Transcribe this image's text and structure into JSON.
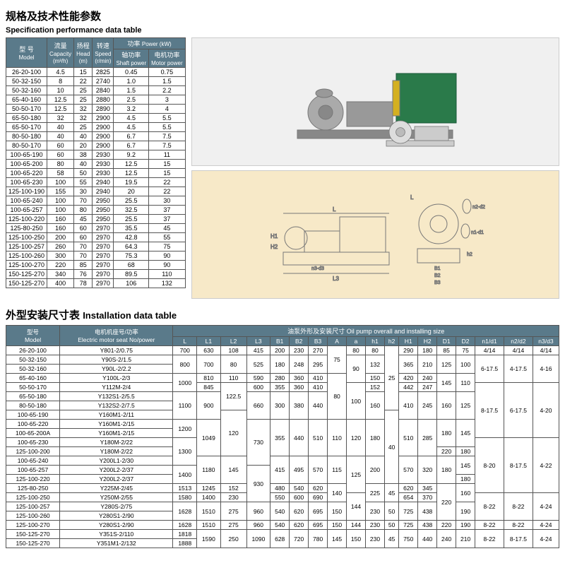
{
  "spec": {
    "title_cn": "规格及技术性能参数",
    "title_en": "Specification performance data table",
    "headers": {
      "model_cn": "型 号",
      "model_en": "Model",
      "cap_cn": "流量",
      "cap_en": "Capacity",
      "cap_u": "(m³/h)",
      "head_cn": "扬程",
      "head_en": "Head",
      "head_u": "(m)",
      "speed_cn": "转速",
      "speed_en": "Speed",
      "speed_u": "(r/min)",
      "power_cn": "功率",
      "power_en": "Power (kW)",
      "shaft_cn": "轴功率",
      "shaft_en": "Shaft power",
      "motor_cn": "电机功率",
      "motor_en": "Motor power"
    },
    "rows": [
      [
        "26-20-100",
        "4.5",
        "15",
        "2825",
        "0.45",
        "0.75"
      ],
      [
        "50-32-150",
        "8",
        "22",
        "2740",
        "1.0",
        "1.5"
      ],
      [
        "50-32-160",
        "10",
        "25",
        "2840",
        "1.5",
        "2.2"
      ],
      [
        "65-40-160",
        "12.5",
        "25",
        "2880",
        "2.5",
        "3"
      ],
      [
        "50-50-170",
        "12.5",
        "32",
        "2890",
        "3.2",
        "4"
      ],
      [
        "65-50-180",
        "32",
        "32",
        "2900",
        "4.5",
        "5.5"
      ],
      [
        "65-50-170",
        "40",
        "25",
        "2900",
        "4.5",
        "5.5"
      ],
      [
        "80-50-180",
        "40",
        "40",
        "2900",
        "6.7",
        "7.5"
      ],
      [
        "80-50-170",
        "60",
        "20",
        "2900",
        "6.7",
        "7.5"
      ],
      [
        "100-65-190",
        "60",
        "38",
        "2930",
        "9.2",
        "11"
      ],
      [
        "100-65-200",
        "80",
        "40",
        "2930",
        "12.5",
        "15"
      ],
      [
        "100-65-220",
        "58",
        "50",
        "2930",
        "12.5",
        "15"
      ],
      [
        "100-65-230",
        "100",
        "55",
        "2940",
        "19.5",
        "22"
      ],
      [
        "125-100-190",
        "155",
        "30",
        "2940",
        "20",
        "22"
      ],
      [
        "100-65-240",
        "100",
        "70",
        "2950",
        "25.5",
        "30"
      ],
      [
        "100-65-257",
        "100",
        "80",
        "2950",
        "32.5",
        "37"
      ],
      [
        "125-100-220",
        "160",
        "45",
        "2950",
        "25.5",
        "37"
      ],
      [
        "125-80-250",
        "160",
        "60",
        "2970",
        "35.5",
        "45"
      ],
      [
        "125-100-250",
        "200",
        "60",
        "2970",
        "42.8",
        "55"
      ],
      [
        "125-100-257",
        "260",
        "70",
        "2970",
        "64.3",
        "75"
      ],
      [
        "125-100-260",
        "300",
        "70",
        "2970",
        "75.3",
        "90"
      ],
      [
        "125-100-270",
        "220",
        "85",
        "2970",
        "68",
        "90"
      ],
      [
        "150-125-270",
        "340",
        "76",
        "2970",
        "89.5",
        "110"
      ],
      [
        "150-125-270",
        "400",
        "78",
        "2970",
        "106",
        "132"
      ]
    ]
  },
  "inst": {
    "title_cn": "外型安装尺寸表",
    "title_en": "Installation data table",
    "h": {
      "model_cn": "型号",
      "model_en": "Model",
      "motor_cn": "电机机座号/功率",
      "motor_en": "Electric motor seat No/power",
      "grp_cn": "油泵外形及安装尺寸",
      "grp_en": "Oil pump overall and installing size"
    },
    "cols": [
      "L",
      "L1",
      "L2",
      "L3",
      "B1",
      "B2",
      "B3",
      "A",
      "a",
      "h1",
      "h2",
      "H1",
      "H2",
      "D1",
      "D2",
      "n1/d1",
      "n2/d2",
      "n3/d3"
    ],
    "rows": [
      [
        "26-20-100",
        "Y801-2/0.75",
        "700",
        "630",
        "108",
        "415",
        "200",
        "230",
        "270",
        "75",
        "80",
        "80",
        "25",
        "290",
        "180",
        "85",
        "75",
        "4/14",
        "4/14",
        "4/14"
      ],
      [
        "50-32-150",
        "Y90S-2/1.5",
        "800",
        "700",
        "80",
        "525",
        "180",
        "248",
        "295",
        "",
        "90",
        "132",
        "",
        "365",
        "210",
        "125",
        "100",
        "6-17.5",
        "4-17.5",
        "4-16"
      ],
      [
        "50-32-160",
        "Y90L-2/2.2",
        "",
        "",
        "",
        "",
        "",
        "",
        "",
        "",
        "",
        "",
        "",
        "",
        "",
        "",
        "",
        "",
        "",
        ""
      ],
      [
        "65-40-160",
        "Y100L-2/3",
        "1000",
        "810",
        "110",
        "590",
        "280",
        "360",
        "410",
        "80",
        "",
        "150",
        "",
        "420",
        "240",
        "145",
        "110",
        "",
        "",
        ""
      ],
      [
        "50-50-170",
        "Y112M-2/4",
        "",
        "845",
        "122.5",
        "600",
        "355",
        "360",
        "410",
        "",
        "100",
        "152",
        "",
        "442",
        "247",
        "",
        "",
        "8-17.5",
        "6-17.5",
        "4-20"
      ],
      [
        "65-50-180",
        "Y132S1-2/5.5",
        "1100",
        "900",
        "",
        "660",
        "300",
        "380",
        "440",
        "",
        "",
        "160",
        "",
        "410",
        "245",
        "160",
        "125",
        "",
        "",
        ""
      ],
      [
        "80-50-180",
        "Y132S2-2/7.5",
        "",
        "",
        "",
        "",
        "",
        "",
        "",
        "",
        "",
        "",
        "",
        "",
        "",
        "",
        "",
        "",
        "",
        ""
      ],
      [
        "100-65-190",
        "Y160M1-2/11",
        "",
        "",
        "120",
        "",
        "",
        "",
        "",
        "",
        "",
        "",
        "40",
        "",
        "",
        "",
        "",
        "",
        "",
        ""
      ],
      [
        "100-65-220",
        "Y160M1-2/15",
        "1200",
        "1049",
        "",
        "730",
        "355",
        "440",
        "510",
        "110",
        "120",
        "180",
        "",
        "510",
        "285",
        "180",
        "145",
        "",
        "",
        ""
      ],
      [
        "100-65-200A",
        "Y160M1-2/15",
        "",
        "",
        "",
        "",
        "",
        "",
        "",
        "",
        "",
        "",
        "",
        "",
        "",
        "",
        "",
        "",
        "",
        ""
      ],
      [
        "100-65-230",
        "Y180M-2/22",
        "1300",
        "",
        "",
        "",
        "",
        "",
        "",
        "",
        "",
        "",
        "",
        "",
        "",
        "",
        "",
        "8-20",
        "8-17.5",
        "4-22"
      ],
      [
        "125-100-200",
        "Y180M-2/22",
        "",
        "",
        "",
        "",
        "",
        "",
        "",
        "",
        "",
        "",
        "",
        "",
        "",
        "220",
        "180",
        "",
        "",
        ""
      ],
      [
        "100-65-240",
        "Y200L1-2/30",
        "",
        "1180",
        "145",
        "",
        "415",
        "495",
        "570",
        "115",
        "125",
        "200",
        "",
        "570",
        "320",
        "180",
        "145",
        "",
        "",
        ""
      ],
      [
        "100-65-257",
        "Y200L2-2/37",
        "1400",
        "",
        "",
        "930",
        "",
        "",
        "",
        "",
        "",
        "",
        "",
        "",
        "",
        "",
        "",
        "",
        "",
        ""
      ],
      [
        "125-100-220",
        "Y200L2-2/37",
        "",
        "",
        "",
        "",
        "",
        "",
        "",
        "",
        "",
        "",
        "",
        "",
        "",
        "",
        "180",
        "",
        "",
        ""
      ],
      [
        "125-80-250",
        "Y225M-2/45",
        "1513",
        "1245",
        "152",
        "",
        "480",
        "540",
        "620",
        "140",
        "",
        "225",
        "45",
        "620",
        "345",
        "220",
        "160",
        "",
        "",
        ""
      ],
      [
        "125-100-250",
        "Y250M-2/55",
        "1580",
        "1400",
        "230",
        "",
        "550",
        "600",
        "690",
        "",
        "144",
        "",
        "",
        "654",
        "370",
        "",
        "",
        "8-22",
        "8-22",
        "4-24"
      ],
      [
        "125-100-257",
        "Y280S-2/75",
        "1628",
        "1510",
        "275",
        "960",
        "540",
        "620",
        "695",
        "150",
        "",
        "230",
        "50",
        "725",
        "438",
        "",
        "190",
        "",
        "",
        ""
      ],
      [
        "125-100-260",
        "Y280S1-2/90",
        "",
        "",
        "",
        "",
        "",
        "",
        "",
        "",
        "",
        "",
        "",
        "",
        "",
        "",
        "",
        "",
        "",
        ""
      ],
      [
        "125-100-270",
        "Y280S1-2/90",
        "1628",
        "1510",
        "275",
        "960",
        "540",
        "620",
        "695",
        "150",
        "144",
        "230",
        "50",
        "725",
        "438",
        "220",
        "190",
        "8-22",
        "8-22",
        "4-24"
      ],
      [
        "150-125-270",
        "Y351S-2/110",
        "1818",
        "1590",
        "250",
        "1090",
        "628",
        "720",
        "780",
        "145",
        "150",
        "230",
        "45",
        "750",
        "440",
        "240",
        "210",
        "8-22",
        "8-17.5",
        "4-24"
      ],
      [
        "150-125-270",
        "Y351M1-2/132",
        "1888",
        "",
        "",
        "",
        "",
        "",
        "",
        "",
        "",
        "",
        "",
        "",
        "",
        "",
        "",
        "",
        "",
        ""
      ]
    ]
  },
  "dim_labels": [
    "L",
    "L1",
    "L2",
    "L3",
    "n3-d3",
    "A",
    "H1",
    "H2",
    "B1",
    "B2",
    "B3",
    "h2",
    "n1-d1",
    "n2-d2"
  ]
}
